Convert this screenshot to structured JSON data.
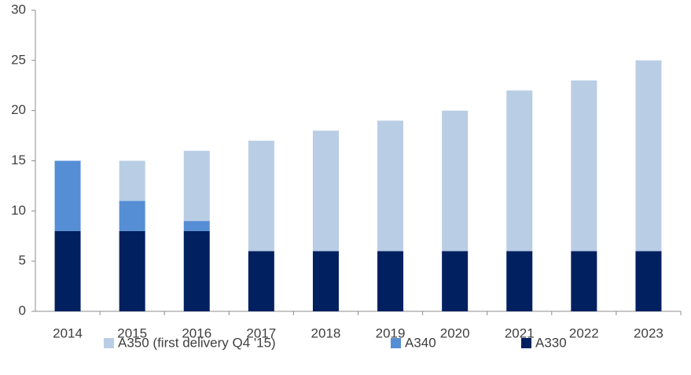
{
  "chart_data": {
    "type": "stacked_bar",
    "categories": [
      "2014",
      "2015",
      "2016",
      "2017",
      "2018",
      "2019",
      "2020",
      "2021",
      "2022",
      "2023"
    ],
    "series": [
      {
        "name": "A330",
        "color": "#002060",
        "values": [
          8,
          8,
          8,
          6,
          6,
          6,
          6,
          6,
          6,
          6
        ]
      },
      {
        "name": "A340",
        "color": "#558ed5",
        "values": [
          7,
          3,
          1,
          0,
          0,
          0,
          0,
          0,
          0,
          0
        ]
      },
      {
        "name": "A350 (first delivery Q4 '15)",
        "color": "#b9cde5",
        "values": [
          0,
          4,
          7,
          11,
          12,
          13,
          14,
          16,
          17,
          19
        ]
      }
    ],
    "ylim": [
      0,
      30
    ],
    "yticks": [
      0,
      5,
      10,
      15,
      20,
      25,
      30
    ],
    "grid": false,
    "legend": "bottom"
  }
}
